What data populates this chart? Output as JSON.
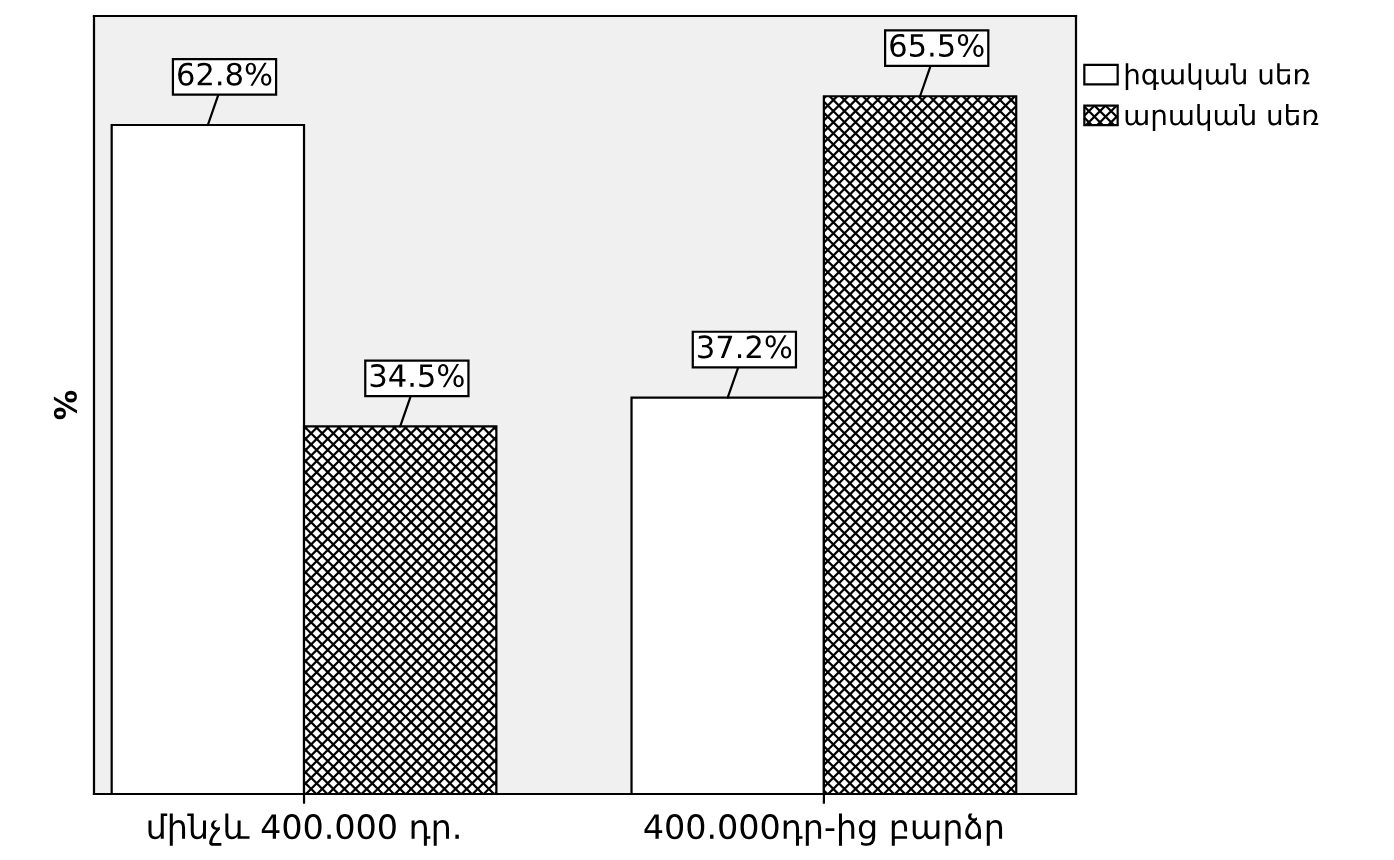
{
  "chart_data": {
    "type": "bar",
    "ylabel": "%",
    "categories": [
      "մինչև 400.000 դր.",
      "400.000դր-ից բարձր"
    ],
    "series": [
      {
        "name": "իգական սեռ",
        "color": "#ffffff",
        "values": [
          62.8,
          37.2
        ],
        "value_labels": [
          "62.8%",
          "37.2%"
        ]
      },
      {
        "name": "արական սեռ",
        "color": "#000000",
        "values": [
          34.5,
          65.5
        ],
        "value_labels": [
          "34.5%",
          "65.5%"
        ]
      }
    ],
    "tick_labels": "x",
    "legend": "right",
    "grid": false
  }
}
